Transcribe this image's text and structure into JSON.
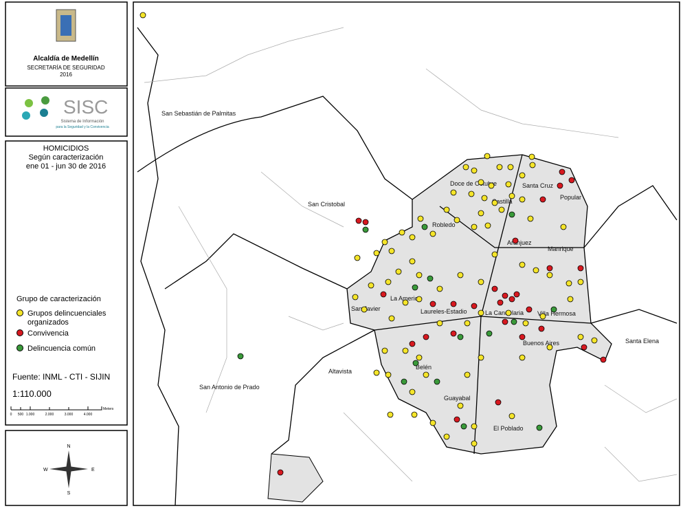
{
  "header": {
    "institution": "Alcaldía de Medellín",
    "department": "SECRETARÍA DE SEGURIDAD",
    "year": "2016"
  },
  "logo": {
    "name": "SISC",
    "line1": "Sistema de Información",
    "line2": "para la Seguridad y la Convivencia"
  },
  "legend": {
    "title": "HOMICIDIOS",
    "subtitle": "Según caracterización",
    "period": "ene 01 - jun 30 de 2016",
    "group_title": "Grupo de caracterización",
    "items": [
      {
        "line1": "Grupos delincuenciales",
        "line2": "organizados",
        "color": "#f5e52a"
      },
      {
        "line1": "Convivencia",
        "color": "#d71920"
      },
      {
        "line1": "Delincuencia común",
        "color": "#3a9a3a"
      }
    ],
    "source": "Fuente: INML - CTI - SIJIN",
    "scale": "1:110.000",
    "scale_bar": {
      "labels": [
        "0",
        "500",
        "1.000",
        "2.000",
        "3.000",
        "4.000"
      ],
      "unit": "Meters"
    }
  },
  "compass": {
    "n": "N",
    "s": "S",
    "e": "E",
    "w": "W"
  },
  "map": {
    "labels": [
      "San Sebastián de Palmitas",
      "San Cristobal",
      "San Antonio de Prado",
      "Altavista",
      "Santa Elena",
      "Doce de Octubre",
      "Santa Cruz",
      "Popular",
      "Castilla",
      "Robledo",
      "Aranjuez",
      "Manrique",
      "San Javier",
      "La America",
      "Laureles-Estadio",
      "La Candelaria",
      "Villa Hermosa",
      "Buenos Aires",
      "Belén",
      "Guayabal",
      "El Poblado"
    ]
  }
}
